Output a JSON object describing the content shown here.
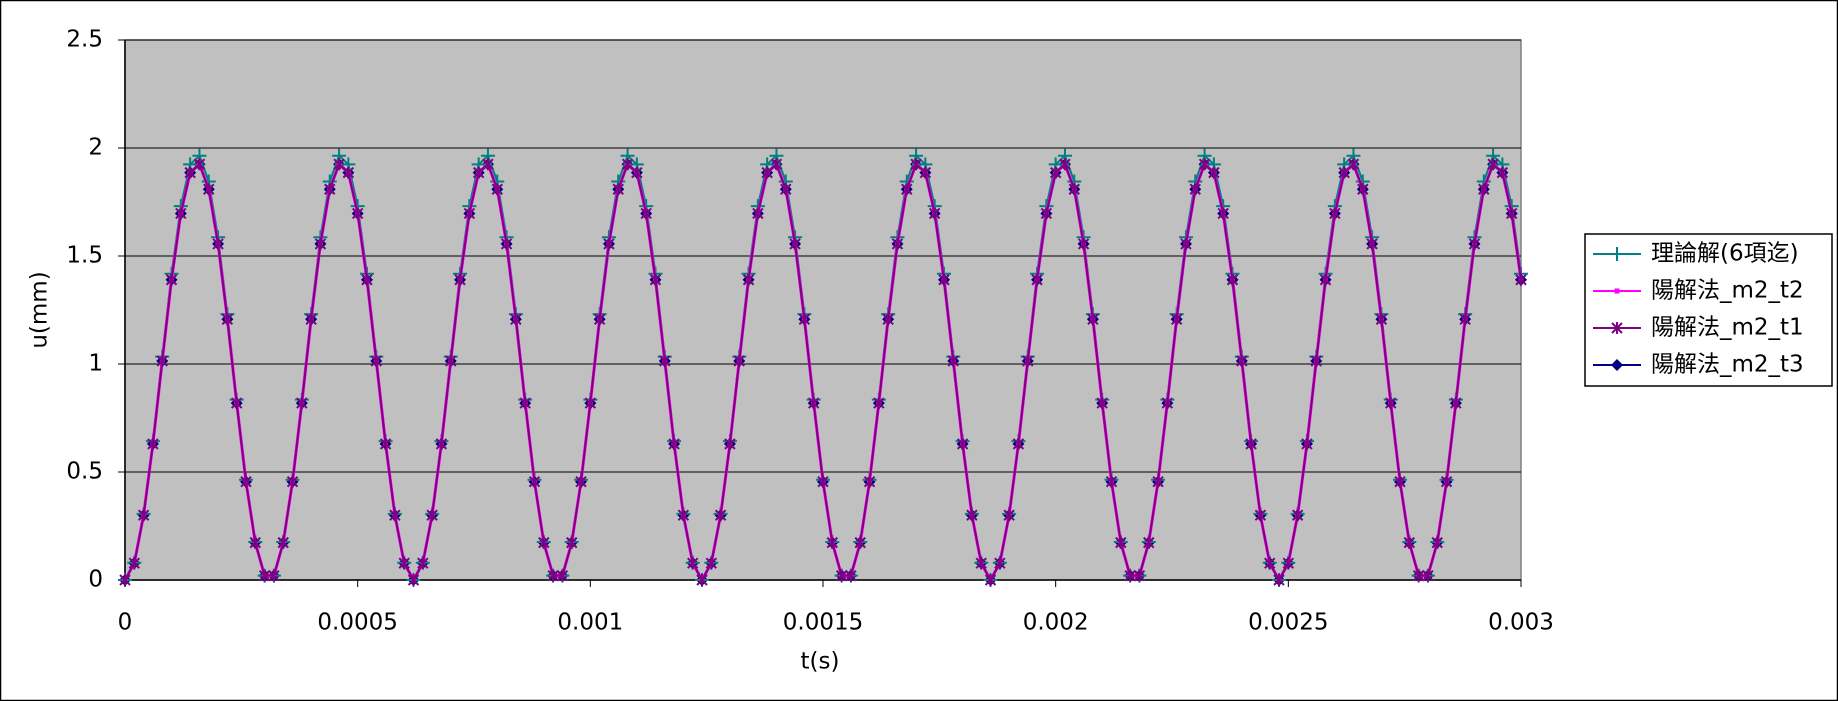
{
  "chart_data": {
    "type": "line",
    "x_label": "t(s)",
    "y_label": "u(mm)",
    "x": [
      0,
      2e-05,
      4e-05,
      6e-05,
      8e-05,
      0.0001,
      0.00012,
      0.00014,
      0.00016,
      0.00018,
      0.0002,
      0.00022,
      0.00024,
      0.00026,
      0.00028,
      0.0003,
      0.00032,
      0.00034,
      0.00036,
      0.00038,
      0.0004,
      0.00042,
      0.00044,
      0.00046,
      0.00048,
      0.0005,
      0.00052,
      0.00054,
      0.00056,
      0.00058,
      0.0006,
      0.00062,
      0.00064,
      0.00066,
      0.00068,
      0.0007,
      0.00072,
      0.00074,
      0.00076,
      0.00078,
      0.0008,
      0.00082,
      0.00084,
      0.00086,
      0.00088,
      0.0009,
      0.00092,
      0.00094,
      0.00096,
      0.00098,
      0.001,
      0.00102,
      0.00104,
      0.00106,
      0.00108,
      0.0011,
      0.00112,
      0.00114,
      0.00116,
      0.00118,
      0.0012,
      0.00122,
      0.00124,
      0.00126,
      0.00128,
      0.0013,
      0.00132,
      0.00134,
      0.00136,
      0.00138,
      0.0014,
      0.00142,
      0.00144,
      0.00146,
      0.00148,
      0.0015,
      0.00152,
      0.00154,
      0.00156,
      0.00158,
      0.0016,
      0.00162,
      0.00164,
      0.00166,
      0.00168,
      0.0017,
      0.00172,
      0.00174,
      0.00176,
      0.00178,
      0.0018,
      0.00182,
      0.00184,
      0.00186,
      0.00188,
      0.0019,
      0.00192,
      0.00194,
      0.00196,
      0.00198,
      0.002,
      0.00202,
      0.00204,
      0.00206,
      0.00208,
      0.0021,
      0.00212,
      0.00214,
      0.00216,
      0.00218,
      0.0022,
      0.00222,
      0.00224,
      0.00226,
      0.00228,
      0.0023,
      0.00232,
      0.00234,
      0.00236,
      0.00238,
      0.0024,
      0.00242,
      0.00244,
      0.00246,
      0.00248,
      0.0025,
      0.00252,
      0.00254,
      0.00256,
      0.00258,
      0.0026,
      0.00262,
      0.00264,
      0.00266,
      0.00268,
      0.0027,
      0.00272,
      0.00274,
      0.00276,
      0.00278,
      0.0028,
      0.00282,
      0.00284,
      0.00286,
      0.00288,
      0.0029,
      0.00292,
      0.00294,
      0.00296,
      0.00298,
      0.003
    ],
    "series": [
      {
        "name": "理論解(6項迄)",
        "color": "#008080",
        "marker": "plus",
        "values": [
          0,
          0.08,
          0.306,
          0.643,
          1.034,
          1.418,
          1.731,
          1.924,
          1.964,
          1.845,
          1.587,
          1.231,
          0.835,
          0.464,
          0.176,
          0.02,
          0.02,
          0.176,
          0.464,
          0.835,
          1.231,
          1.587,
          1.845,
          1.964,
          1.924,
          1.731,
          1.418,
          1.034,
          0.643,
          0.306,
          0.08,
          0,
          0.08,
          0.306,
          0.643,
          1.034,
          1.418,
          1.731,
          1.924,
          1.964,
          1.845,
          1.587,
          1.231,
          0.835,
          0.464,
          0.176,
          0.02,
          0.02,
          0.176,
          0.464,
          0.835,
          1.231,
          1.587,
          1.845,
          1.964,
          1.924,
          1.731,
          1.418,
          1.034,
          0.643,
          0.306,
          0.08,
          0,
          0.08,
          0.306,
          0.643,
          1.034,
          1.418,
          1.731,
          1.924,
          1.964,
          1.845,
          1.587,
          1.231,
          0.835,
          0.464,
          0.176,
          0.02,
          0.02,
          0.176,
          0.464,
          0.835,
          1.231,
          1.587,
          1.845,
          1.964,
          1.924,
          1.731,
          1.418,
          1.034,
          0.643,
          0.306,
          0.08,
          0,
          0.08,
          0.306,
          0.643,
          1.034,
          1.418,
          1.731,
          1.924,
          1.964,
          1.845,
          1.587,
          1.231,
          0.835,
          0.464,
          0.176,
          0.02,
          0.02,
          0.176,
          0.464,
          0.835,
          1.231,
          1.587,
          1.845,
          1.964,
          1.924,
          1.731,
          1.418,
          1.034,
          0.643,
          0.306,
          0.08,
          0,
          0.08,
          0.306,
          0.643,
          1.034,
          1.418,
          1.731,
          1.924,
          1.964,
          1.845,
          1.587,
          1.231,
          0.835,
          0.464,
          0.176,
          0.02,
          0.02,
          0.176,
          0.464,
          0.835,
          1.231,
          1.587,
          1.845,
          1.964,
          1.924,
          1.731,
          1.418
        ]
      },
      {
        "name": "陽解法_m2_t2",
        "color": "#ff00ff",
        "marker": "dot",
        "values": [
          0,
          0.078,
          0.3,
          0.63,
          1.014,
          1.39,
          1.697,
          1.886,
          1.925,
          1.809,
          1.556,
          1.207,
          0.819,
          0.455,
          0.173,
          0.02,
          0.02,
          0.173,
          0.455,
          0.819,
          1.207,
          1.556,
          1.809,
          1.925,
          1.886,
          1.697,
          1.39,
          1.014,
          0.63,
          0.3,
          0.078,
          0,
          0.078,
          0.3,
          0.63,
          1.014,
          1.39,
          1.697,
          1.886,
          1.925,
          1.809,
          1.556,
          1.207,
          0.819,
          0.455,
          0.173,
          0.02,
          0.02,
          0.173,
          0.455,
          0.819,
          1.207,
          1.556,
          1.809,
          1.925,
          1.886,
          1.697,
          1.39,
          1.014,
          0.63,
          0.3,
          0.078,
          0,
          0.078,
          0.3,
          0.63,
          1.014,
          1.39,
          1.697,
          1.886,
          1.925,
          1.809,
          1.556,
          1.207,
          0.819,
          0.455,
          0.173,
          0.02,
          0.02,
          0.173,
          0.455,
          0.819,
          1.207,
          1.556,
          1.809,
          1.925,
          1.886,
          1.697,
          1.39,
          1.014,
          0.63,
          0.3,
          0.078,
          0,
          0.078,
          0.3,
          0.63,
          1.014,
          1.39,
          1.697,
          1.886,
          1.925,
          1.809,
          1.556,
          1.207,
          0.819,
          0.455,
          0.173,
          0.02,
          0.02,
          0.173,
          0.455,
          0.819,
          1.207,
          1.556,
          1.809,
          1.925,
          1.886,
          1.697,
          1.39,
          1.014,
          0.63,
          0.3,
          0.078,
          0,
          0.078,
          0.3,
          0.63,
          1.014,
          1.39,
          1.697,
          1.886,
          1.925,
          1.809,
          1.556,
          1.207,
          0.819,
          0.455,
          0.173,
          0.02,
          0.02,
          0.173,
          0.455,
          0.819,
          1.207,
          1.556,
          1.809,
          1.925,
          1.886,
          1.697,
          1.39
        ]
      },
      {
        "name": "陽解法_m2_t1",
        "color": "#800080",
        "marker": "cross",
        "values": [
          0,
          0.078,
          0.3,
          0.63,
          1.014,
          1.39,
          1.697,
          1.886,
          1.925,
          1.809,
          1.556,
          1.207,
          0.819,
          0.455,
          0.173,
          0.02,
          0.02,
          0.173,
          0.455,
          0.819,
          1.207,
          1.556,
          1.809,
          1.925,
          1.886,
          1.697,
          1.39,
          1.014,
          0.63,
          0.3,
          0.078,
          0,
          0.078,
          0.3,
          0.63,
          1.014,
          1.39,
          1.697,
          1.886,
          1.925,
          1.809,
          1.556,
          1.207,
          0.819,
          0.455,
          0.173,
          0.02,
          0.02,
          0.173,
          0.455,
          0.819,
          1.207,
          1.556,
          1.809,
          1.925,
          1.886,
          1.697,
          1.39,
          1.014,
          0.63,
          0.3,
          0.078,
          0,
          0.078,
          0.3,
          0.63,
          1.014,
          1.39,
          1.697,
          1.886,
          1.925,
          1.809,
          1.556,
          1.207,
          0.819,
          0.455,
          0.173,
          0.02,
          0.02,
          0.173,
          0.455,
          0.819,
          1.207,
          1.556,
          1.809,
          1.925,
          1.886,
          1.697,
          1.39,
          1.014,
          0.63,
          0.3,
          0.078,
          0,
          0.078,
          0.3,
          0.63,
          1.014,
          1.39,
          1.697,
          1.886,
          1.925,
          1.809,
          1.556,
          1.207,
          0.819,
          0.455,
          0.173,
          0.02,
          0.02,
          0.173,
          0.455,
          0.819,
          1.207,
          1.556,
          1.809,
          1.925,
          1.886,
          1.697,
          1.39,
          1.014,
          0.63,
          0.3,
          0.078,
          0,
          0.078,
          0.3,
          0.63,
          1.014,
          1.39,
          1.697,
          1.886,
          1.925,
          1.809,
          1.556,
          1.207,
          0.819,
          0.455,
          0.173,
          0.02,
          0.02,
          0.173,
          0.455,
          0.819,
          1.207,
          1.556,
          1.809,
          1.925,
          1.886,
          1.697,
          1.39
        ]
      },
      {
        "name": "陽解法_m2_t3",
        "color": "#000080",
        "marker": "diamond",
        "values": [
          0,
          0.078,
          0.3,
          0.63,
          1.014,
          1.39,
          1.697,
          1.886,
          1.925,
          1.809,
          1.556,
          1.207,
          0.819,
          0.455,
          0.173,
          0.02,
          0.02,
          0.173,
          0.455,
          0.819,
          1.207,
          1.556,
          1.809,
          1.925,
          1.886,
          1.697,
          1.39,
          1.014,
          0.63,
          0.3,
          0.078,
          0,
          0.078,
          0.3,
          0.63,
          1.014,
          1.39,
          1.697,
          1.886,
          1.925,
          1.809,
          1.556,
          1.207,
          0.819,
          0.455,
          0.173,
          0.02,
          0.02,
          0.173,
          0.455,
          0.819,
          1.207,
          1.556,
          1.809,
          1.925,
          1.886,
          1.697,
          1.39,
          1.014,
          0.63,
          0.3,
          0.078,
          0,
          0.078,
          0.3,
          0.63,
          1.014,
          1.39,
          1.697,
          1.886,
          1.925,
          1.809,
          1.556,
          1.207,
          0.819,
          0.455,
          0.173,
          0.02,
          0.02,
          0.173,
          0.455,
          0.819,
          1.207,
          1.556,
          1.809,
          1.925,
          1.886,
          1.697,
          1.39,
          1.014,
          0.63,
          0.3,
          0.078,
          0,
          0.078,
          0.3,
          0.63,
          1.014,
          1.39,
          1.697,
          1.886,
          1.925,
          1.809,
          1.556,
          1.207,
          0.819,
          0.455,
          0.173,
          0.02,
          0.02,
          0.173,
          0.455,
          0.819,
          1.207,
          1.556,
          1.809,
          1.925,
          1.886,
          1.697,
          1.39,
          1.014,
          0.63,
          0.3,
          0.078,
          0,
          0.078,
          0.3,
          0.63,
          1.014,
          1.39,
          1.697,
          1.886,
          1.925,
          1.809,
          1.556,
          1.207,
          0.819,
          0.455,
          0.173,
          0.02,
          0.02,
          0.173,
          0.455,
          0.819,
          1.207,
          1.556,
          1.809,
          1.925,
          1.886,
          1.697,
          1.39
        ]
      }
    ],
    "xlim": [
      0,
      0.003
    ],
    "xticks": [
      0,
      0.0005,
      0.001,
      0.0015,
      0.002,
      0.0025,
      0.003
    ],
    "ylim": [
      0,
      2.5
    ],
    "yticks": [
      0,
      0.5,
      1,
      1.5,
      2,
      2.5
    ],
    "grid": true,
    "plot_background": "#c0c0c0",
    "legend": "right"
  }
}
